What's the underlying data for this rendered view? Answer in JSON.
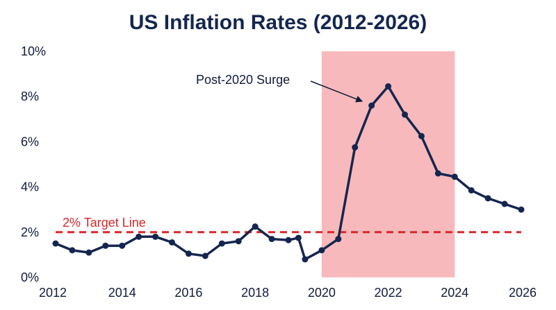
{
  "chart_data": {
    "type": "line",
    "title": "US Inflation Rates (2012-2026)",
    "xlabel": "",
    "ylabel": "",
    "xlim": [
      2012,
      2026
    ],
    "ylim": [
      0,
      10
    ],
    "x_ticks": [
      2012,
      2014,
      2016,
      2018,
      2020,
      2022,
      2024,
      2026
    ],
    "x_tick_labels": [
      "2012",
      "2014",
      "2016",
      "2018",
      "2020",
      "2022",
      "2024",
      "2026"
    ],
    "y_ticks": [
      0,
      2,
      4,
      6,
      8,
      10
    ],
    "y_tick_labels": [
      "0%",
      "2%",
      "4%",
      "6%",
      "8%",
      "10%"
    ],
    "grid": false,
    "series": [
      {
        "color": "#14264f",
        "points": [
          [
            2012.0,
            1.5
          ],
          [
            2012.5,
            1.2
          ],
          [
            2013.0,
            1.1
          ],
          [
            2013.5,
            1.4
          ],
          [
            2014.0,
            1.4
          ],
          [
            2014.5,
            1.8
          ],
          [
            2015.0,
            1.8
          ],
          [
            2015.5,
            1.55
          ],
          [
            2016.0,
            1.05
          ],
          [
            2016.5,
            0.95
          ],
          [
            2017.0,
            1.5
          ],
          [
            2017.5,
            1.6
          ],
          [
            2018.0,
            2.25
          ],
          [
            2018.5,
            1.7
          ],
          [
            2019.0,
            1.65
          ],
          [
            2019.3,
            1.75
          ],
          [
            2019.5,
            0.8
          ],
          [
            2020.0,
            1.2
          ],
          [
            2020.5,
            1.7
          ],
          [
            2021.0,
            5.75
          ],
          [
            2021.5,
            7.6
          ],
          [
            2022.0,
            8.45
          ],
          [
            2022.5,
            7.2
          ],
          [
            2023.0,
            6.25
          ],
          [
            2023.5,
            4.6
          ],
          [
            2024.0,
            4.45
          ],
          [
            2024.5,
            3.85
          ],
          [
            2025.0,
            3.5
          ],
          [
            2025.5,
            3.25
          ],
          [
            2026.0,
            3.0
          ]
        ]
      }
    ],
    "reference_line": {
      "y": 2,
      "label": "2% Target Line",
      "color": "#d9262a",
      "style": "dashed"
    },
    "highlight_band": {
      "x_start": 2020,
      "x_end": 2024,
      "color": "#f7b9bb"
    },
    "annotations": [
      {
        "text": "Post-2020 Surge",
        "arrow_to": [
          2021.2,
          7.8
        ]
      }
    ]
  }
}
